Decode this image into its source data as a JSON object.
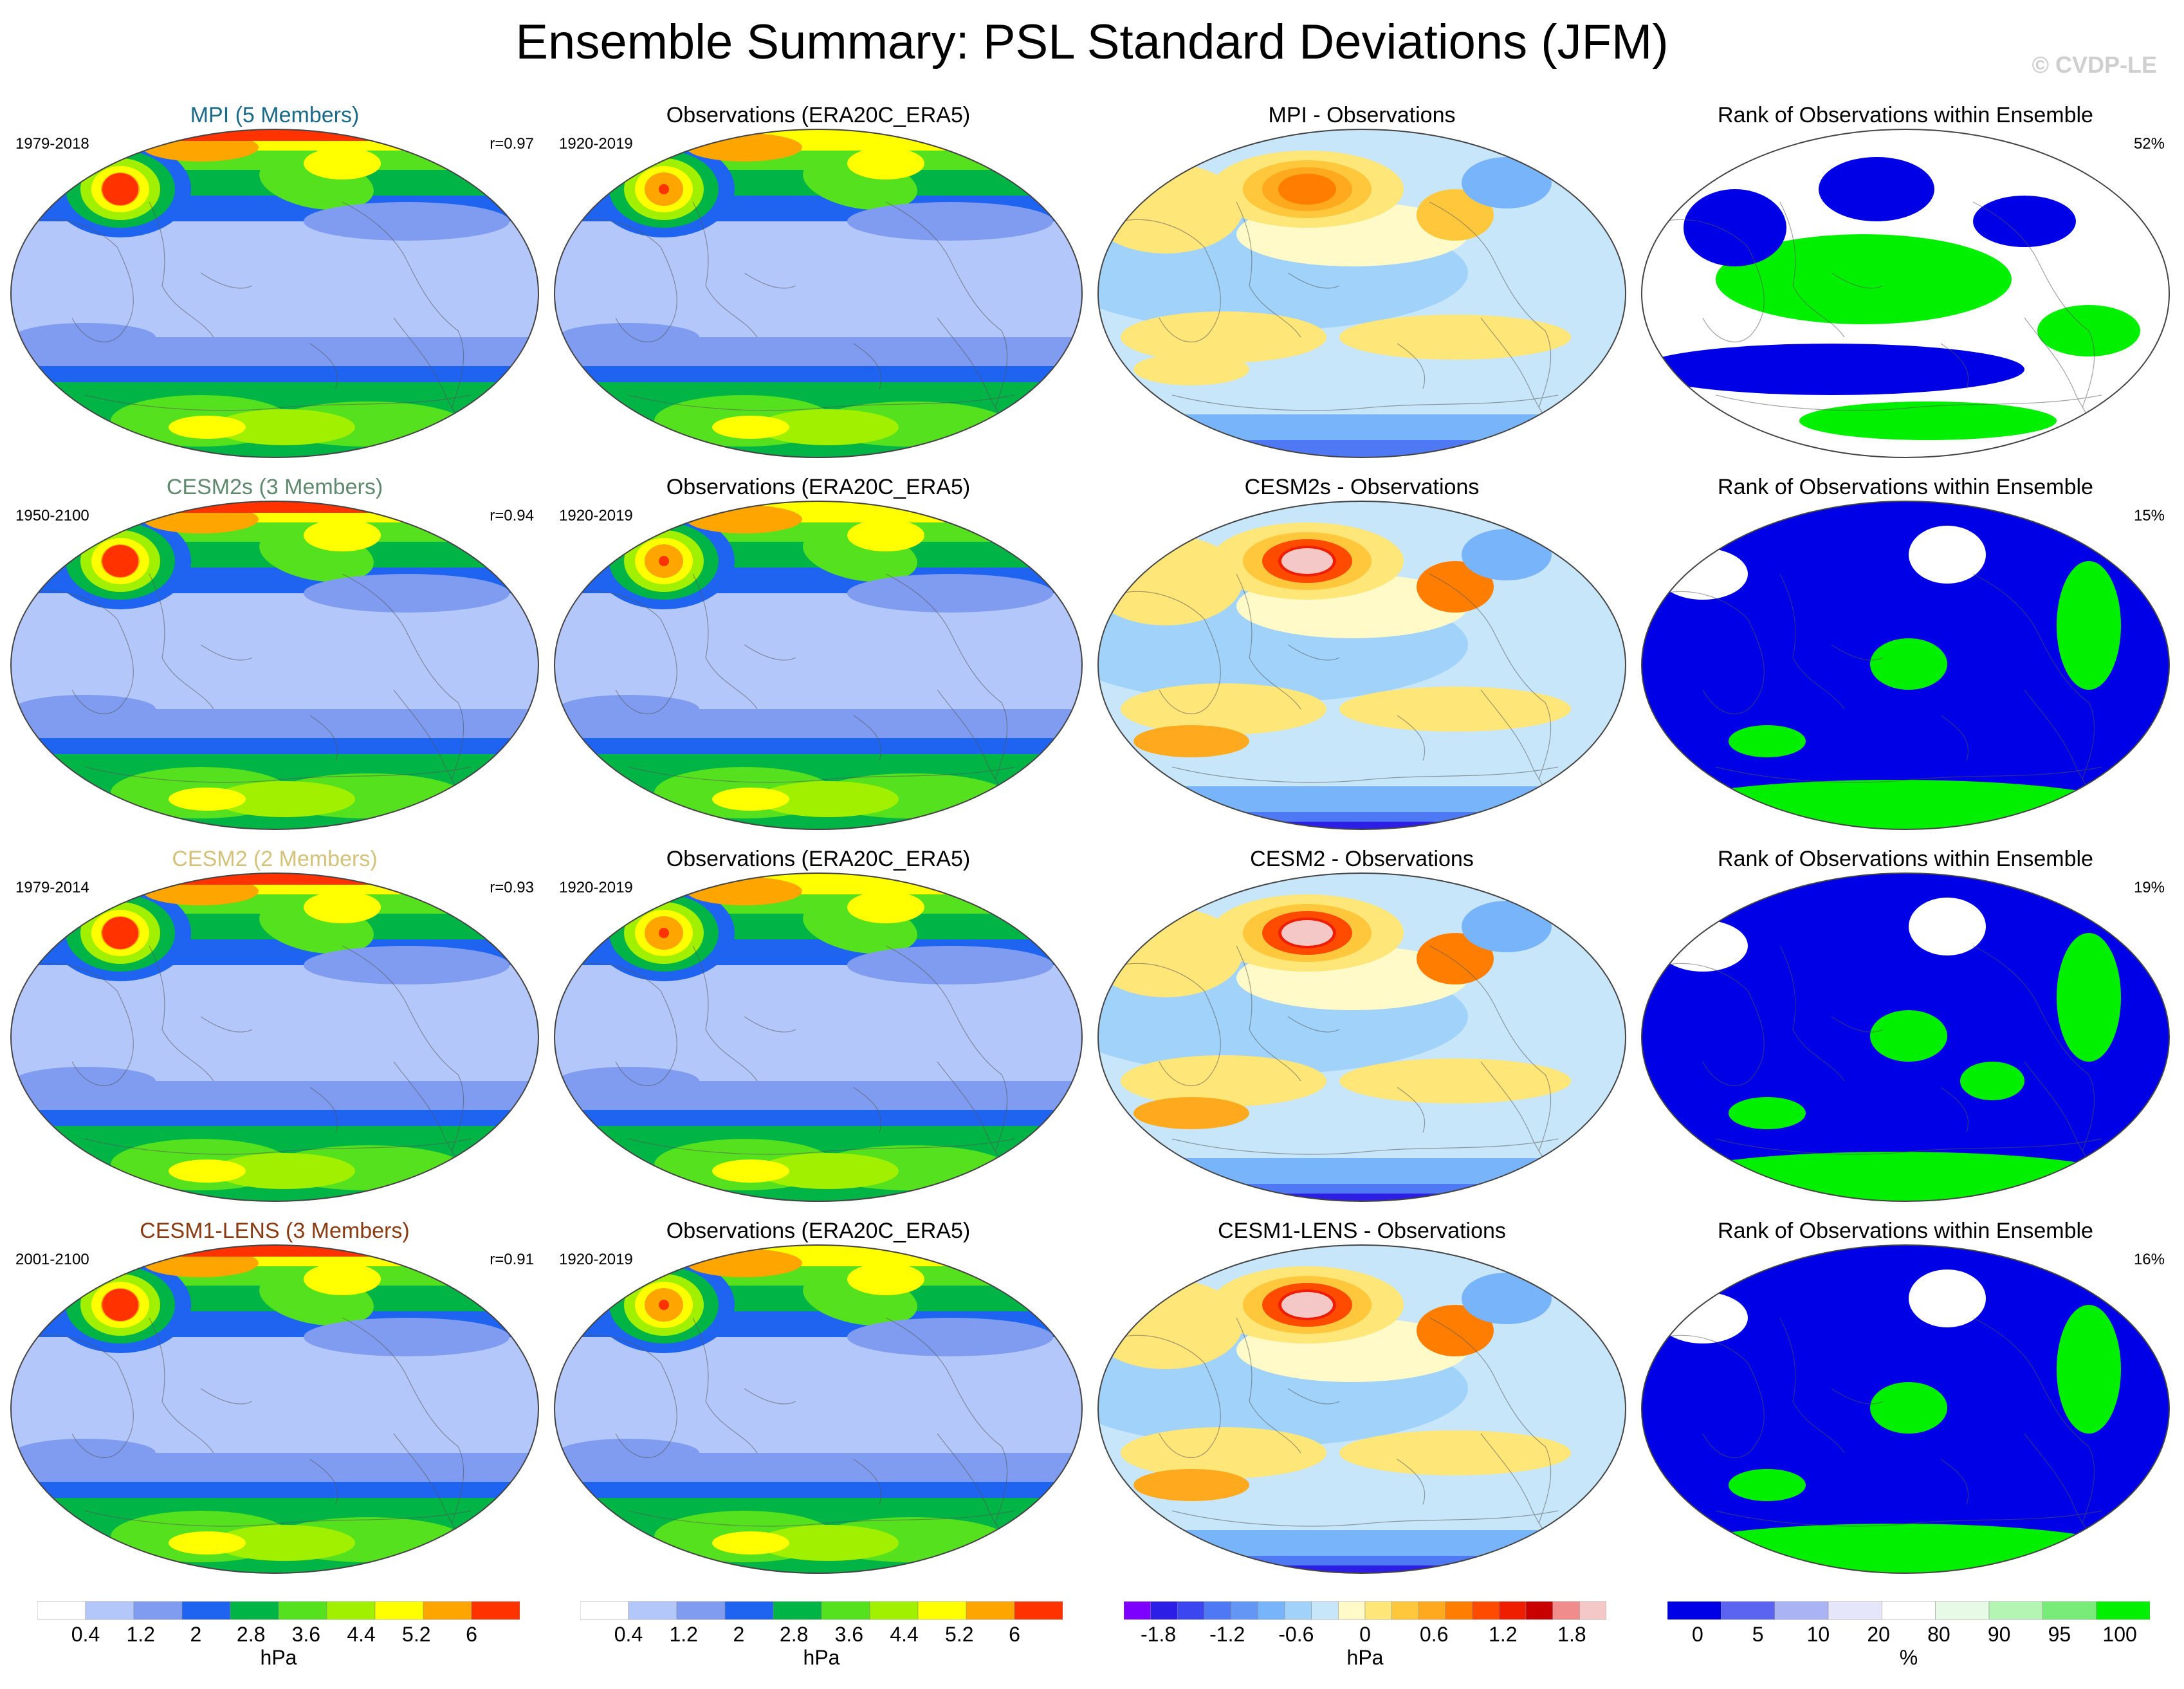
{
  "title": "Ensemble Summary: PSL Standard Deviations (JFM)",
  "watermark": "© CVDP-LE",
  "colors": {
    "std": [
      "#ffffff",
      "#b4c7fa",
      "#7f9cf0",
      "#1e64f0",
      "#00b446",
      "#56e11e",
      "#a0f000",
      "#ffff00",
      "#ffa500",
      "#ff3200"
    ],
    "diff": [
      "#7d00ff",
      "#2d1ee6",
      "#3c46f0",
      "#4f78f5",
      "#6497f5",
      "#78b4fa",
      "#a0d2fa",
      "#c8e6fa",
      "#fffac8",
      "#ffe678",
      "#ffc83c",
      "#ffaa1e",
      "#ff7d00",
      "#ff4b00",
      "#f01e00",
      "#c80000",
      "#f08c8c",
      "#f5c8c8"
    ],
    "rank": [
      "#0000e6",
      "#5a64f0",
      "#aab4f5",
      "#e6e6fa",
      "#ffffff",
      "#e6fae6",
      "#b4f5b4",
      "#78eb78",
      "#00f000"
    ]
  },
  "rows": [
    {
      "model": {
        "title": "MPI (5 Members)",
        "title_color": "#1a6a8a",
        "period": "1979-2018",
        "pattern_corr": "r=0.97",
        "max_level": 9
      },
      "obs": {
        "title": "Observations (ERA20C_ERA5)",
        "period": "1920-2019"
      },
      "diff": {
        "title": "MPI - Observations"
      },
      "rank": {
        "title": "Rank of Observations within Ensemble",
        "pct": "52%"
      }
    },
    {
      "model": {
        "title": "CESM2s (3 Members)",
        "title_color": "#5f8a6e",
        "period": "1950-2100",
        "pattern_corr": "r=0.94",
        "max_level": 9
      },
      "obs": {
        "title": "Observations (ERA20C_ERA5)",
        "period": "1920-2019"
      },
      "diff": {
        "title": "CESM2s - Observations"
      },
      "rank": {
        "title": "Rank of Observations within Ensemble",
        "pct": "15%"
      }
    },
    {
      "model": {
        "title": "CESM2 (2 Members)",
        "title_color": "#d4c27a",
        "period": "1979-2014",
        "pattern_corr": "r=0.93",
        "max_level": 9
      },
      "obs": {
        "title": "Observations (ERA20C_ERA5)",
        "period": "1920-2019"
      },
      "diff": {
        "title": "CESM2 - Observations"
      },
      "rank": {
        "title": "Rank of Observations within Ensemble",
        "pct": "19%"
      }
    },
    {
      "model": {
        "title": "CESM1-LENS (3 Members)",
        "title_color": "#8b3a12",
        "period": "2001-2100",
        "pattern_corr": "r=0.91",
        "max_level": 9
      },
      "obs": {
        "title": "Observations (ERA20C_ERA5)",
        "period": "1920-2019"
      },
      "diff": {
        "title": "CESM1-LENS - Observations"
      },
      "rank": {
        "title": "Rank of Observations within Ensemble",
        "pct": "16%"
      }
    }
  ],
  "chart_data": {
    "type": "heatmap",
    "title": "Ensemble Summary: PSL Standard Deviations (JFM)",
    "colorbars": [
      {
        "name": "std_model",
        "unit": "hPa",
        "ticks": [
          "0.4",
          "1.2",
          "2",
          "2.8",
          "3.6",
          "4.4",
          "5.2",
          "6"
        ],
        "levels": [
          0.4,
          0.8,
          1.2,
          2,
          2.4,
          2.8,
          3.6,
          4.4,
          5.2,
          6
        ]
      },
      {
        "name": "std_obs",
        "unit": "hPa",
        "ticks": [
          "0.4",
          "1.2",
          "2",
          "2.8",
          "3.6",
          "4.4",
          "5.2",
          "6"
        ],
        "levels": [
          0.4,
          0.8,
          1.2,
          2,
          2.4,
          2.8,
          3.6,
          4.4,
          5.2,
          6
        ]
      },
      {
        "name": "difference",
        "unit": "hPa",
        "ticks": [
          "-1.8",
          "-1.2",
          "-0.6",
          "0",
          "0.6",
          "1.2",
          "1.8"
        ]
      },
      {
        "name": "rank",
        "unit": "%",
        "ticks": [
          "0",
          "5",
          "10",
          "20",
          "80",
          "90",
          "95",
          "100"
        ]
      }
    ],
    "panels": [
      {
        "row": 1,
        "model": "MPI",
        "members": 5,
        "period": "1979-2018",
        "pattern_correlation": 0.97,
        "rank_summary_pct": 52
      },
      {
        "row": 2,
        "model": "CESM2s",
        "members": 3,
        "period": "1950-2100",
        "pattern_correlation": 0.94,
        "rank_summary_pct": 15
      },
      {
        "row": 3,
        "model": "CESM2",
        "members": 2,
        "period": "1979-2014",
        "pattern_correlation": 0.93,
        "rank_summary_pct": 19
      },
      {
        "row": 4,
        "model": "CESM1-LENS",
        "members": 3,
        "period": "2001-2100",
        "pattern_correlation": 0.91,
        "rank_summary_pct": 16
      }
    ],
    "observations": {
      "dataset": "ERA20C_ERA5",
      "period": "1920-2019"
    }
  }
}
